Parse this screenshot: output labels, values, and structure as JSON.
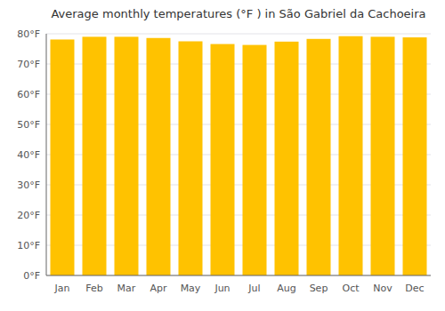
{
  "chart_data": {
    "type": "bar",
    "title": "Average monthly temperatures (°F ) in São Gabriel da Cachoeira",
    "categories": [
      "Jan",
      "Feb",
      "Mar",
      "Apr",
      "May",
      "Jun",
      "Jul",
      "Aug",
      "Sep",
      "Oct",
      "Nov",
      "Dec"
    ],
    "values": [
      78.1,
      79.0,
      79.0,
      78.6,
      77.5,
      76.6,
      76.3,
      77.4,
      78.3,
      79.2,
      79.0,
      78.8
    ],
    "color": "#FFC200",
    "ylim": [
      0,
      80
    ],
    "yticks": [
      {
        "value": 0,
        "label": "0°F"
      },
      {
        "value": 10,
        "label": "10°F"
      },
      {
        "value": 20,
        "label": "20°F"
      },
      {
        "value": 30,
        "label": "30°F"
      },
      {
        "value": 40,
        "label": "40°F"
      },
      {
        "value": 50,
        "label": "50°F"
      },
      {
        "value": 60,
        "label": "60°F"
      },
      {
        "value": 70,
        "label": "70°F"
      },
      {
        "value": 80,
        "label": "80°F"
      }
    ],
    "grid": true
  }
}
